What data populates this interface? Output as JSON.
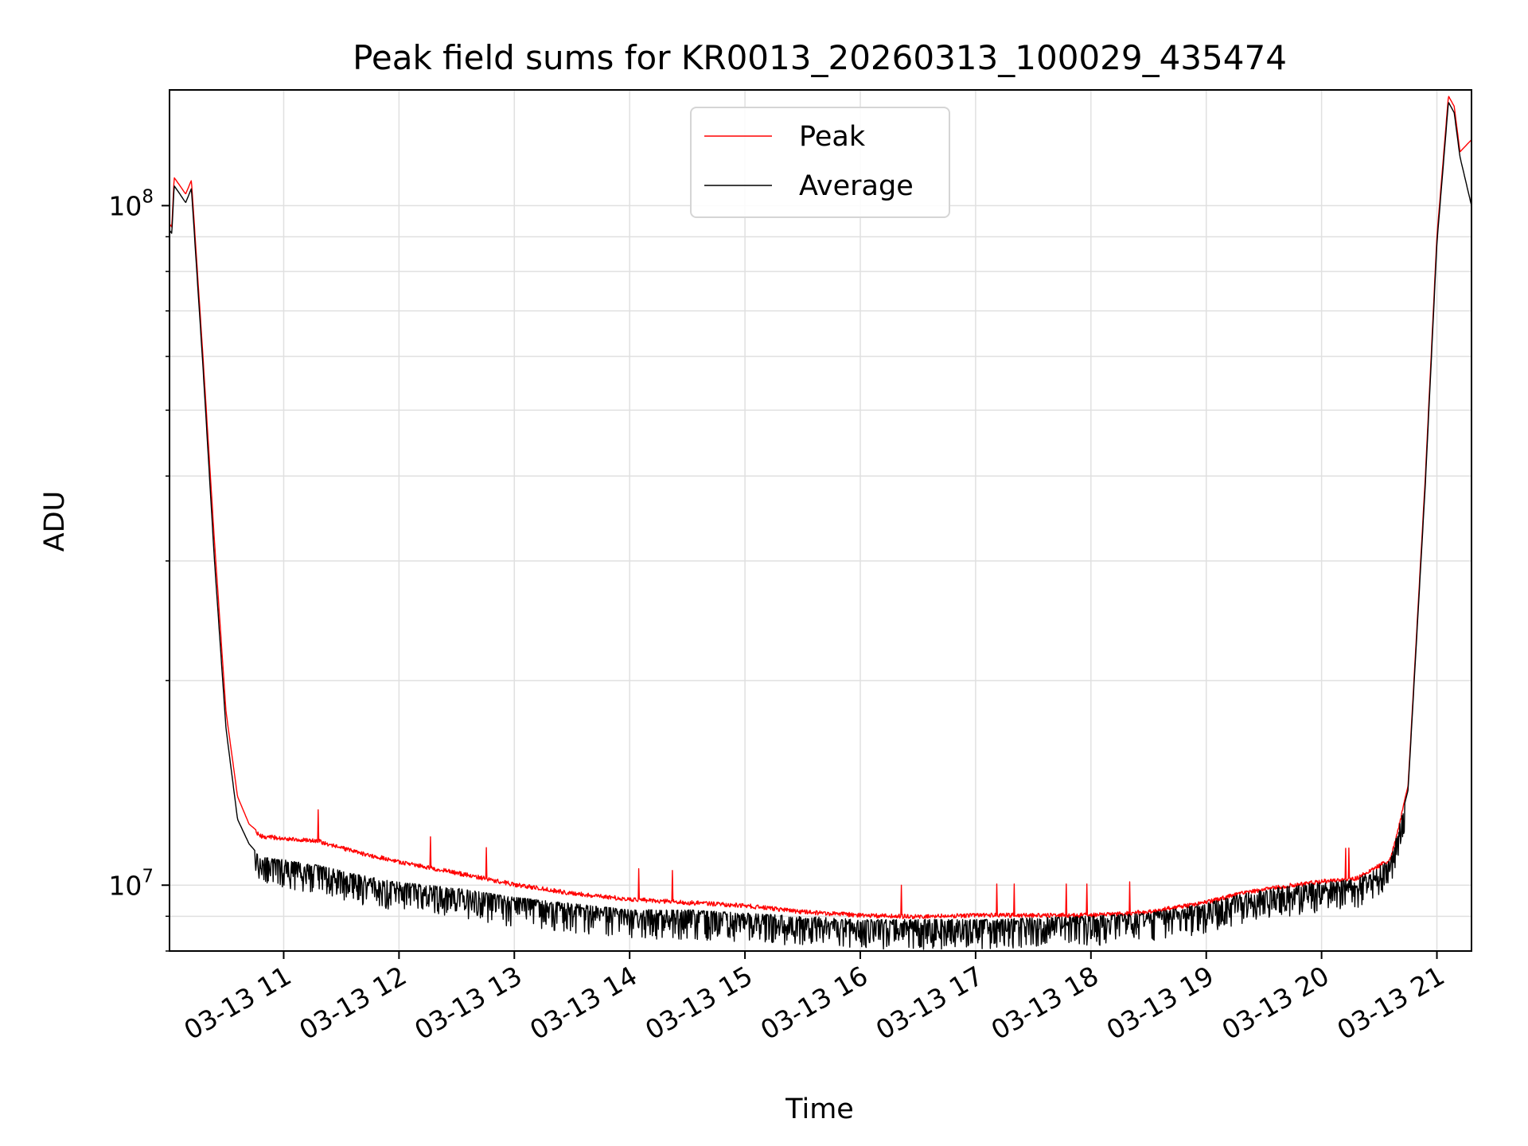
{
  "chart_data": {
    "type": "line",
    "title": "Peak field sums for KR0013_20260313_100029_435474",
    "xlabel": "Time",
    "ylabel": "ADU",
    "yscale": "log",
    "ylim": [
      8000000,
      148000000
    ],
    "xlim": [
      10.01,
      21.3
    ],
    "x_tick_labels": [
      "03-13 11",
      "03-13 12",
      "03-13 13",
      "03-13 14",
      "03-13 15",
      "03-13 16",
      "03-13 17",
      "03-13 18",
      "03-13 19",
      "03-13 20",
      "03-13 21"
    ],
    "x_tick_values": [
      11,
      12,
      13,
      14,
      15,
      16,
      17,
      18,
      19,
      20,
      21
    ],
    "y_tick_labels": [
      {
        "base": "10",
        "exp": "7"
      },
      {
        "base": "10",
        "exp": "8"
      }
    ],
    "y_tick_values": [
      10000000,
      100000000
    ],
    "y_minor_ticks": [
      8000000,
      9000000,
      20000000,
      30000000,
      40000000,
      50000000,
      60000000,
      70000000,
      80000000,
      90000000
    ],
    "grid": true,
    "legend": {
      "position": "top-center",
      "entries": [
        "Peak",
        "Average"
      ]
    },
    "colors": {
      "peak": "#ff0000",
      "average": "#000000",
      "grid": "#e0e0e0"
    },
    "series": [
      {
        "name": "Peak",
        "color": "#ff0000",
        "x": [
          10.01,
          10.03,
          10.05,
          10.1,
          10.15,
          10.2,
          10.3,
          10.4,
          10.5,
          10.6,
          10.7,
          10.8,
          11.0,
          11.3,
          11.6,
          12.0,
          12.5,
          13.0,
          13.5,
          14.0,
          14.5,
          15.0,
          15.5,
          16.0,
          16.5,
          17.0,
          17.5,
          18.0,
          18.5,
          19.0,
          19.3,
          19.6,
          20.0,
          20.3,
          20.6,
          20.75,
          20.9,
          21.0,
          21.1,
          21.15,
          21.2,
          21.3
        ],
        "y": [
          94000000,
          93000000,
          110000000,
          107000000,
          104000000,
          109000000,
          60000000,
          32000000,
          18000000,
          13500000,
          12300000,
          11900000,
          11800000,
          11700000,
          11300000,
          10900000,
          10500000,
          10100000,
          9800000,
          9600000,
          9500000,
          9400000,
          9200000,
          9100000,
          9050000,
          9100000,
          9100000,
          9100000,
          9200000,
          9500000,
          9800000,
          10000000,
          10200000,
          10300000,
          11000000,
          14000000,
          40000000,
          90000000,
          145000000,
          140000000,
          120000000,
          125000000
        ]
      },
      {
        "name": "Average",
        "color": "#000000",
        "x": [
          10.01,
          10.03,
          10.05,
          10.1,
          10.15,
          10.2,
          10.3,
          10.4,
          10.5,
          10.6,
          10.7,
          10.8,
          11.0,
          11.3,
          11.6,
          12.0,
          12.5,
          13.0,
          13.5,
          14.0,
          14.5,
          15.0,
          15.5,
          16.0,
          16.5,
          17.0,
          17.5,
          18.0,
          18.5,
          19.0,
          19.3,
          19.6,
          20.0,
          20.3,
          20.6,
          20.75,
          20.9,
          21.0,
          21.1,
          21.15,
          21.2,
          21.3
        ],
        "y": [
          92000000,
          91000000,
          107000000,
          104000000,
          101000000,
          106000000,
          58000000,
          30000000,
          17000000,
          12500000,
          11500000,
          11000000,
          10900000,
          10700000,
          10400000,
          10100000,
          9900000,
          9600000,
          9400000,
          9200000,
          9200000,
          9100000,
          9000000,
          8900000,
          8900000,
          8900000,
          8950000,
          9000000,
          9100000,
          9400000,
          9700000,
          9900000,
          10100000,
          10200000,
          10900000,
          13800000,
          39000000,
          88000000,
          142000000,
          137000000,
          118000000,
          100000000
        ]
      }
    ],
    "noise": {
      "Average": 0.06,
      "Peak": 0.015
    }
  }
}
